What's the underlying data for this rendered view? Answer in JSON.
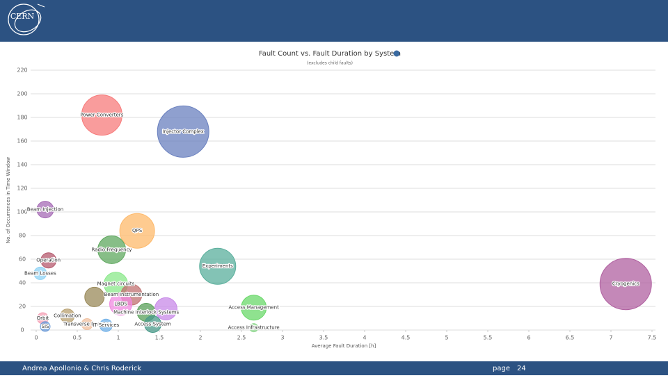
{
  "logo_text": "CERN",
  "footer": {
    "authors": "Andrea Apollonio & Chris Roderick",
    "page_label": "page",
    "page_number": "24"
  },
  "chart_data": {
    "type": "bubble",
    "title": "Fault Count vs. Fault Duration by System",
    "subtitle": "(excludes child faults)",
    "xlabel": "Average Fault Duration [h]",
    "ylabel": "No. of Occurrences in Time Window",
    "xlim": [
      0,
      7.5
    ],
    "xticks": [
      0,
      0.5,
      1,
      1.5,
      2,
      2.5,
      3,
      3.5,
      4,
      4.5,
      5,
      5.5,
      6,
      6.5,
      7,
      7.5
    ],
    "ylim": [
      0,
      220
    ],
    "yticks": [
      0,
      20,
      40,
      60,
      80,
      100,
      120,
      140,
      160,
      180,
      200,
      220
    ],
    "grid": true,
    "points": [
      {
        "name": "Power Converters",
        "color": "#f77b7b",
        "x": 0.8,
        "y": 182,
        "size": 29
      },
      {
        "name": "Injector Complex",
        "color": "#6a80bf",
        "x": 1.79,
        "y": 168,
        "size": 37
      },
      {
        "name": "Beam Injection",
        "color": "#a66bb5",
        "x": 0.11,
        "y": 102,
        "size": 12
      },
      {
        "name": "QPS",
        "color": "#fdb96b",
        "x": 1.23,
        "y": 84,
        "size": 25
      },
      {
        "name": "Radio Frequency",
        "color": "#5fa85f",
        "x": 0.92,
        "y": 68,
        "size": 20
      },
      {
        "name": "Operation",
        "color": "#b55a6e",
        "x": 0.15,
        "y": 59,
        "size": 11
      },
      {
        "name": "Experiments",
        "color": "#5aaf9c",
        "x": 2.21,
        "y": 54,
        "size": 26
      },
      {
        "name": "Beam Losses",
        "color": "#8fd3f5",
        "x": 0.05,
        "y": 48,
        "size": 9
      },
      {
        "name": "Cryogenics",
        "color": "#b060a0",
        "x": 7.18,
        "y": 39,
        "size": 37
      },
      {
        "name": "Magnet circuits",
        "color": "#8ae88a",
        "x": 0.97,
        "y": 39,
        "size": 17
      },
      {
        "name": "Beam Instrumentation",
        "color": "#c07070",
        "x": 1.16,
        "y": 30,
        "size": 15
      },
      {
        "name": null,
        "color": "#9a8a5a",
        "x": 0.71,
        "y": 28,
        "size": 14
      },
      {
        "name": "LBDS",
        "color": "#f08ae0",
        "x": 1.03,
        "y": 22,
        "size": 16
      },
      {
        "name": null,
        "color": "#c88ae8",
        "x": 1.58,
        "y": 18,
        "size": 16
      },
      {
        "name": "Access Management",
        "color": "#6ad86a",
        "x": 2.65,
        "y": 19,
        "size": 18
      },
      {
        "name": "Machine Interlock Systems",
        "color": "#5aa05a",
        "x": 1.34,
        "y": 15,
        "size": 13
      },
      {
        "name": "Collimation",
        "color": "#b8a070",
        "x": 0.38,
        "y": 12,
        "size": 10
      },
      {
        "name": "Orbit",
        "color": "#f5a0b5",
        "x": 0.08,
        "y": 10,
        "size": 8
      },
      {
        "name": "SIS",
        "color": "#6a9ad8",
        "x": 0.11,
        "y": 3,
        "size": 7
      },
      {
        "name": "Transverse Damper",
        "color": "#f0c0a0",
        "x": 0.62,
        "y": 5,
        "size": 8
      },
      {
        "name": "IT Services",
        "color": "#70b0e8",
        "x": 0.85,
        "y": 4,
        "size": 9
      },
      {
        "name": "Access System",
        "color": "#4a9a8a",
        "x": 1.42,
        "y": 5,
        "size": 12
      },
      {
        "name": "Access Infrastructure",
        "color": "#90d890",
        "x": 2.65,
        "y": 2,
        "size": 6
      }
    ]
  }
}
